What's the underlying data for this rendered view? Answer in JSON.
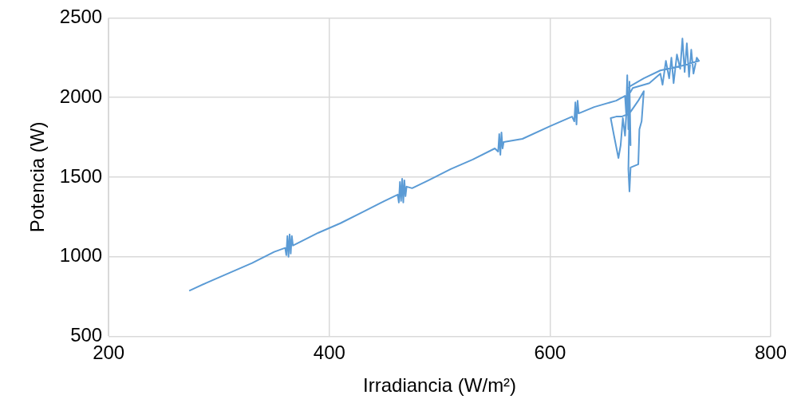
{
  "chart_data": {
    "type": "line",
    "xlabel": "Irradiancia (W/m²)",
    "ylabel": "Potencia (W)",
    "xlim": [
      200,
      800
    ],
    "xticks": [
      200,
      400,
      600,
      800
    ],
    "ylim": [
      500,
      2500
    ],
    "yticks": [
      500,
      1000,
      1500,
      2000,
      2500
    ],
    "grid": true,
    "legend": false,
    "marker": "none",
    "line_style": "solid",
    "series": [
      {
        "color": "#5b9bd5",
        "x": [
          273,
          290,
          310,
          330,
          350,
          360,
          361,
          362,
          363,
          364,
          365,
          366,
          367,
          370,
          390,
          410,
          430,
          450,
          462,
          463,
          464,
          465,
          466,
          467,
          468,
          469,
          470,
          475,
          490,
          510,
          530,
          550,
          553,
          554,
          555,
          556,
          557,
          558,
          575,
          600,
          620,
          622,
          623,
          624,
          625,
          626,
          640,
          660,
          668,
          669,
          670,
          671,
          672,
          673,
          672,
          671,
          672,
          673,
          680,
          681,
          683,
          685,
          680,
          672,
          665,
          660,
          655,
          658,
          662,
          664,
          666,
          668,
          670,
          675,
          690,
          700,
          702,
          705,
          708,
          710,
          712,
          715,
          718,
          720,
          722,
          724,
          726,
          728,
          730,
          733,
          735,
          720,
          700,
          685,
          670
        ],
        "values": [
          786,
          840,
          900,
          960,
          1030,
          1055,
          1010,
          1130,
          1000,
          1140,
          1020,
          1130,
          1070,
          1080,
          1150,
          1210,
          1280,
          1350,
          1390,
          1340,
          1470,
          1350,
          1490,
          1340,
          1480,
          1380,
          1440,
          1430,
          1480,
          1550,
          1610,
          1680,
          1660,
          1770,
          1640,
          1780,
          1680,
          1720,
          1740,
          1820,
          1880,
          1850,
          1970,
          1830,
          1980,
          1900,
          1940,
          1980,
          2010,
          1900,
          2140,
          1800,
          2100,
          1700,
          1900,
          1550,
          1410,
          1560,
          1580,
          1800,
          1850,
          2040,
          1980,
          1900,
          1880,
          1880,
          1870,
          1760,
          1620,
          1700,
          1870,
          1760,
          2000,
          2060,
          2090,
          2150,
          2080,
          2230,
          2120,
          2250,
          2090,
          2270,
          2180,
          2370,
          2160,
          2340,
          2130,
          2300,
          2150,
          2250,
          2230,
          2200,
          2170,
          2120,
          2060
        ]
      }
    ]
  }
}
